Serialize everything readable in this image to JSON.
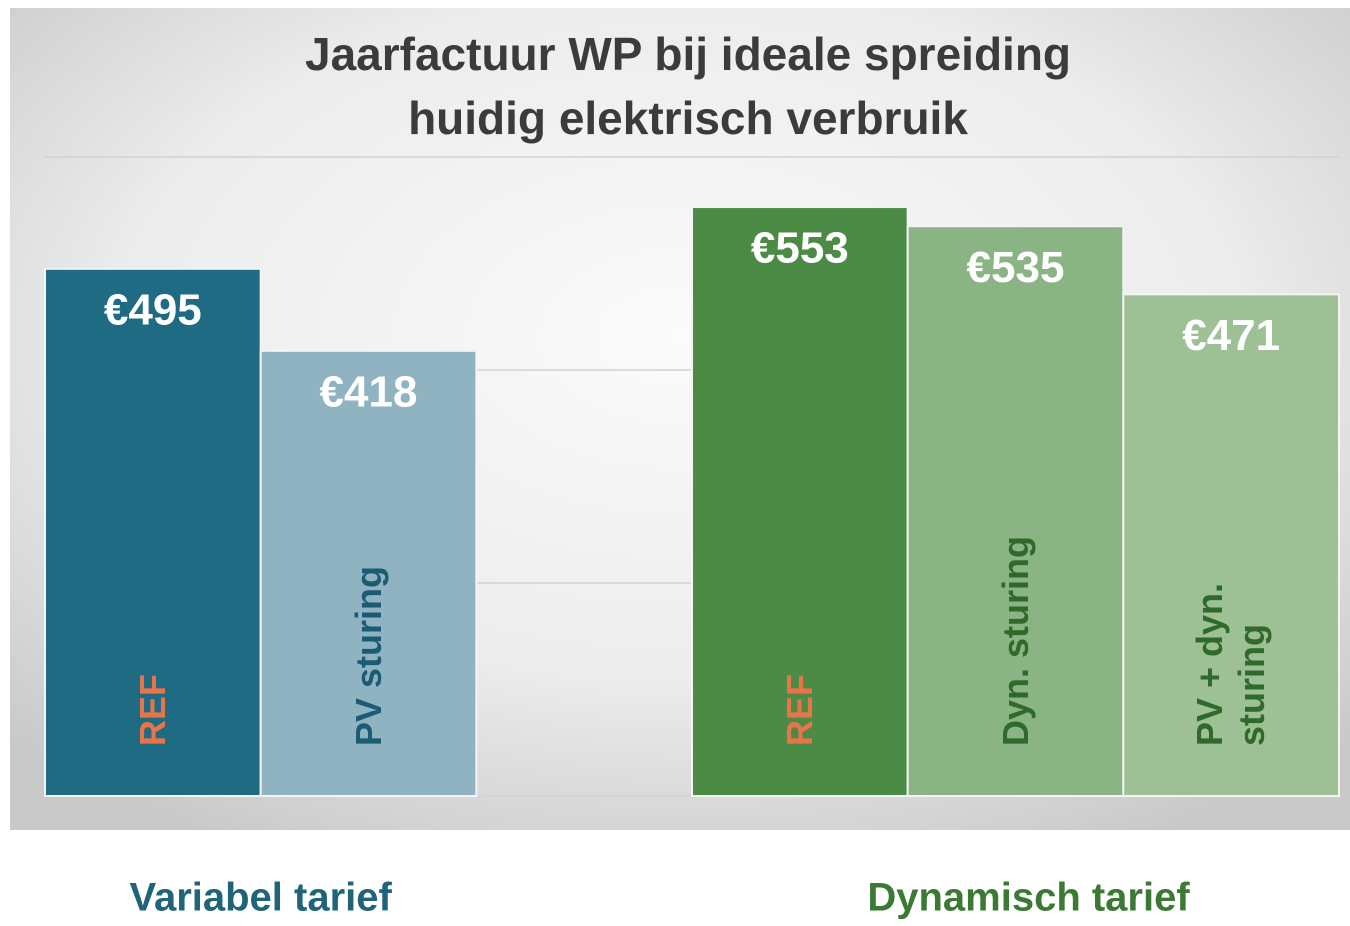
{
  "chart_data": {
    "type": "bar",
    "title": "Jaarfactuur WP bij ideale spreiding",
    "subtitle": "huidig elektrisch verbruik",
    "categories": [
      "REF",
      "PV sturing",
      null,
      "REF",
      "Dyn. sturing",
      "PV + dyn. sturing"
    ],
    "category_colors": [
      "#e8744a",
      "#1d5a74",
      null,
      "#e8744a",
      "#2f6a2b",
      "#2f6a2b"
    ],
    "values": [
      495,
      418,
      null,
      553,
      535,
      471
    ],
    "value_labels": [
      "€495",
      "€418",
      null,
      "€553",
      "€535",
      "€471"
    ],
    "colors": [
      "#1f6b84",
      "#8fb3c1",
      null,
      "#4c8b46",
      "#8ab483",
      "#9dc195"
    ],
    "groups": [
      {
        "label": "Variabel tarief",
        "color": "#1f6478"
      },
      {
        "label": "Dynamisch tarief",
        "color": "#3a7a33"
      }
    ],
    "ylim": [
      0,
      600
    ],
    "yticks": [
      0,
      200,
      400,
      600
    ],
    "grid": true
  }
}
